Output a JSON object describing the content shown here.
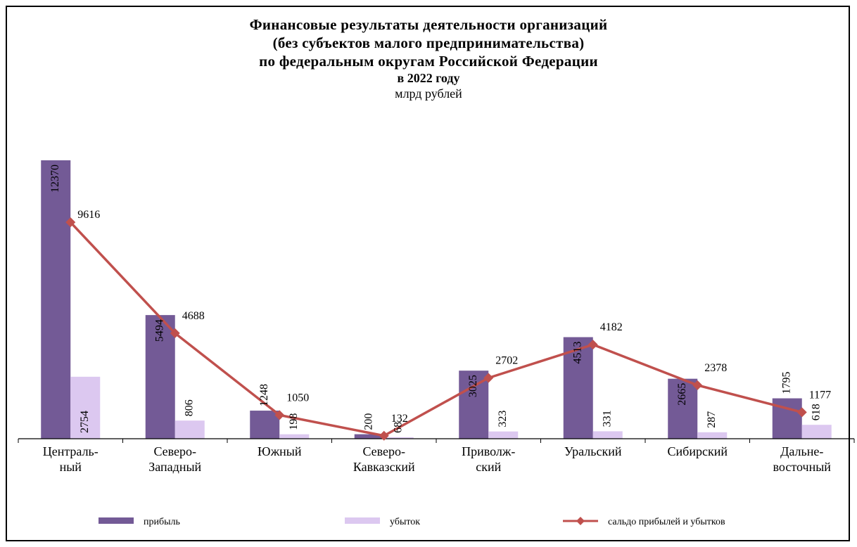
{
  "chart_data": {
    "type": "bar",
    "title_lines": [
      "Финансовые результаты деятельности организаций",
      "(без субъектов малого предпринимательства)",
      "по федеральным округам Российской Федерации"
    ],
    "subtitle": "в 2022 году",
    "unit": "млрд рублей",
    "categories": [
      [
        "Централь-",
        "ный"
      ],
      [
        "Северо-",
        "Западный"
      ],
      [
        "Южный"
      ],
      [
        "Северо-",
        "Кавказский"
      ],
      [
        "Приволж-",
        "ский"
      ],
      [
        "Уральский"
      ],
      [
        "Сибирский"
      ],
      [
        "Дальне-",
        "восточный"
      ]
    ],
    "series": [
      {
        "name": "прибыль",
        "kind": "bar",
        "color": "#735a96",
        "values": [
          12370,
          5494,
          1248,
          200,
          3025,
          4513,
          2665,
          1795
        ]
      },
      {
        "name": "убыток",
        "kind": "bar",
        "color": "#dcc8f0",
        "values": [
          2754,
          806,
          198,
          68,
          323,
          331,
          287,
          618
        ]
      },
      {
        "name": "сальдо прибылей и убытков",
        "kind": "line",
        "color": "#c0504d",
        "values": [
          9616,
          4688,
          1050,
          132,
          2702,
          4182,
          2378,
          1177
        ]
      }
    ],
    "ylim": [
      0,
      12370
    ],
    "legend_position": "bottom"
  }
}
